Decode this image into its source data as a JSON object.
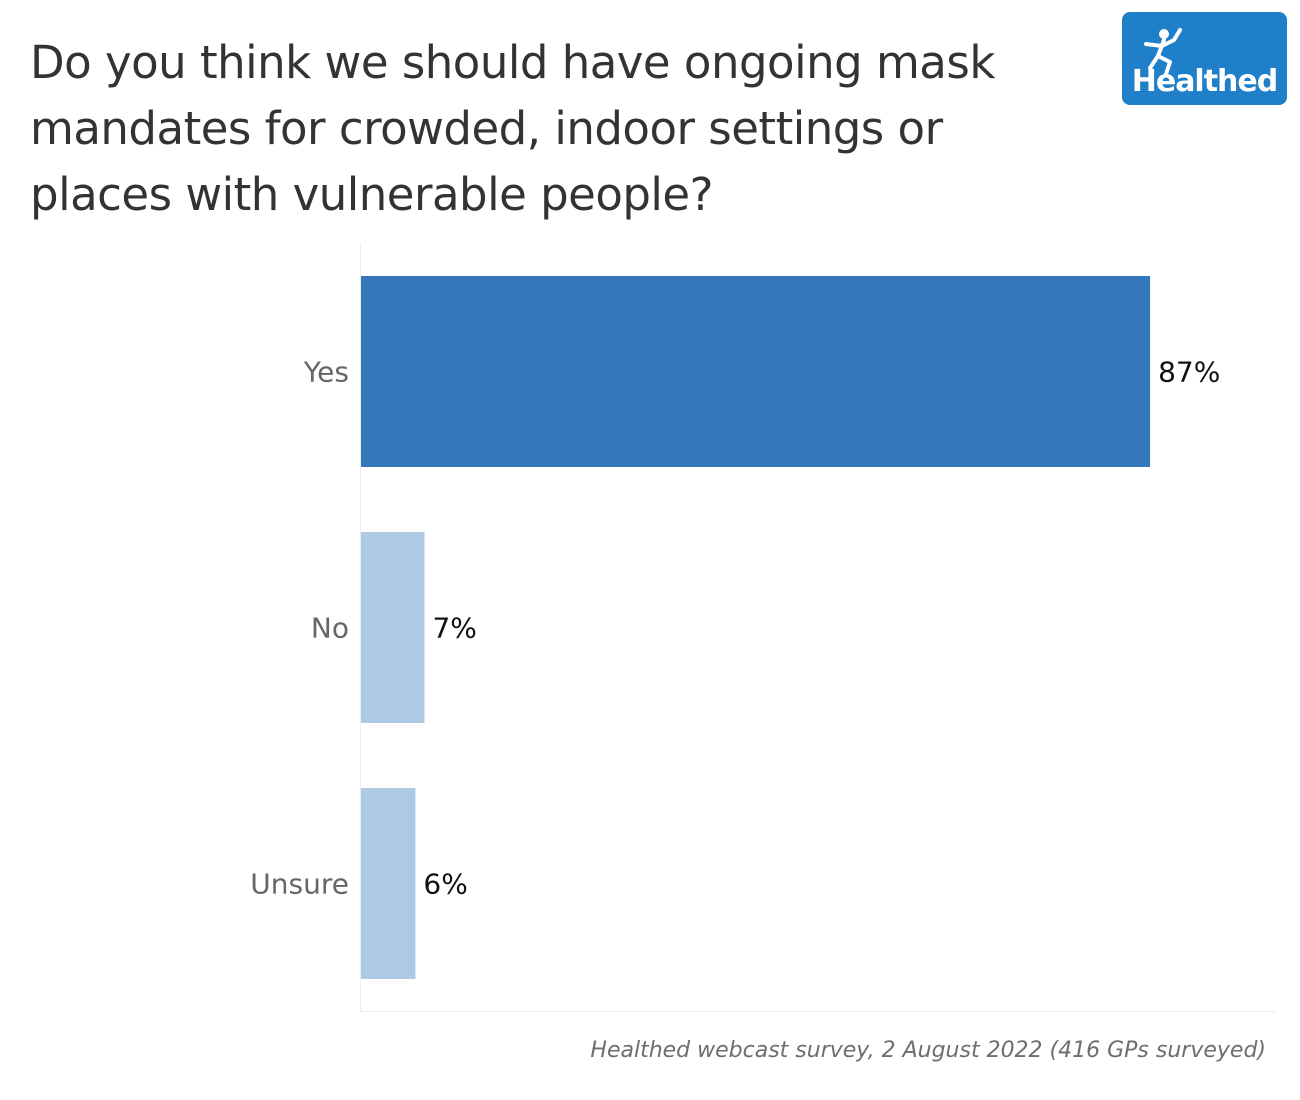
{
  "chart_data": {
    "type": "bar",
    "orientation": "horizontal",
    "title": "Do you think we should have ongoing mask mandates for crowded, indoor settings or places with vulnerable people?",
    "categories": [
      "Yes",
      "No",
      "Unsure"
    ],
    "values": [
      87,
      7,
      6
    ],
    "value_labels": [
      "87%",
      "7%",
      "6%"
    ],
    "xlim": [
      0,
      100
    ],
    "grid": false,
    "legend": "none",
    "bar_colors": [
      "#3477bb",
      "#adcae4",
      "#adcae4"
    ],
    "source": "Healthed webcast survey, 2 August 2022 (416 GPs surveyed)"
  },
  "logo": {
    "text": "Healthed",
    "color": "#1f7fc8"
  }
}
